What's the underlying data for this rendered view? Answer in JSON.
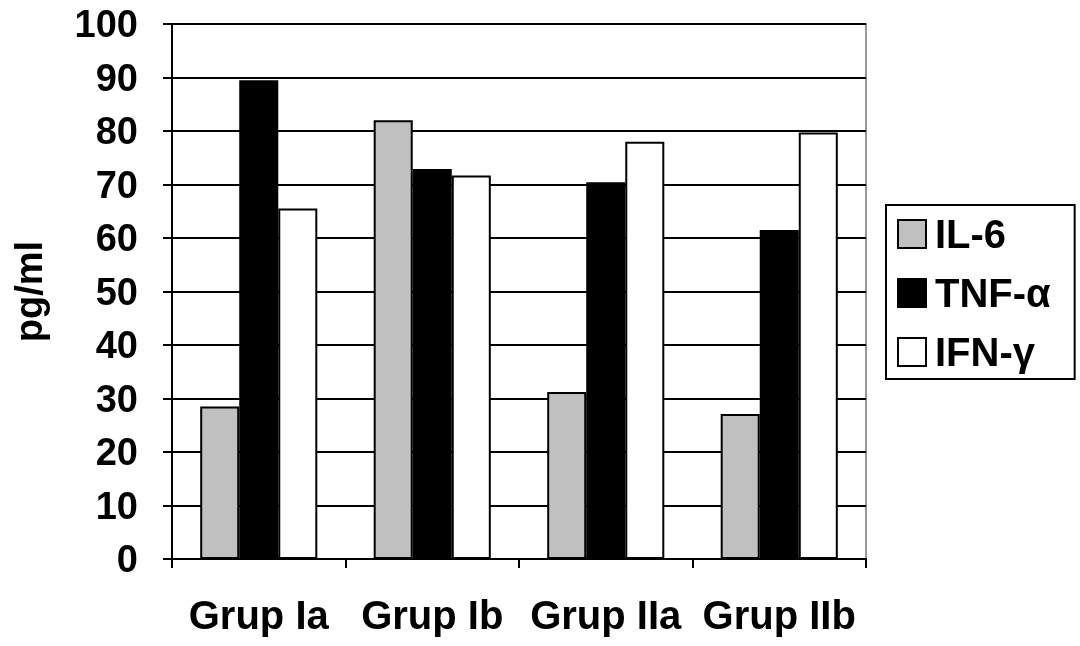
{
  "chart_data": {
    "type": "bar",
    "ylabel": "pg/ml",
    "categories": [
      "Grup Ia",
      "Grup Ib",
      "Grup IIa",
      "Grup IIb"
    ],
    "series": [
      {
        "name": "IL-6",
        "color": "#c0c0c0",
        "values": [
          28.5,
          82,
          31.2,
          27.1
        ]
      },
      {
        "name": "TNF-α",
        "color": "#000000",
        "values": [
          89.5,
          72.9,
          70.4,
          61.5
        ]
      },
      {
        "name": "IFN-γ",
        "color": "#ffffff",
        "values": [
          65.5,
          71.7,
          78,
          79.7
        ]
      }
    ],
    "ylim": [
      0,
      100
    ],
    "yticks": [
      0,
      10,
      20,
      30,
      40,
      50,
      60,
      70,
      80,
      90,
      100
    ],
    "grid": "y",
    "legend": "right"
  }
}
